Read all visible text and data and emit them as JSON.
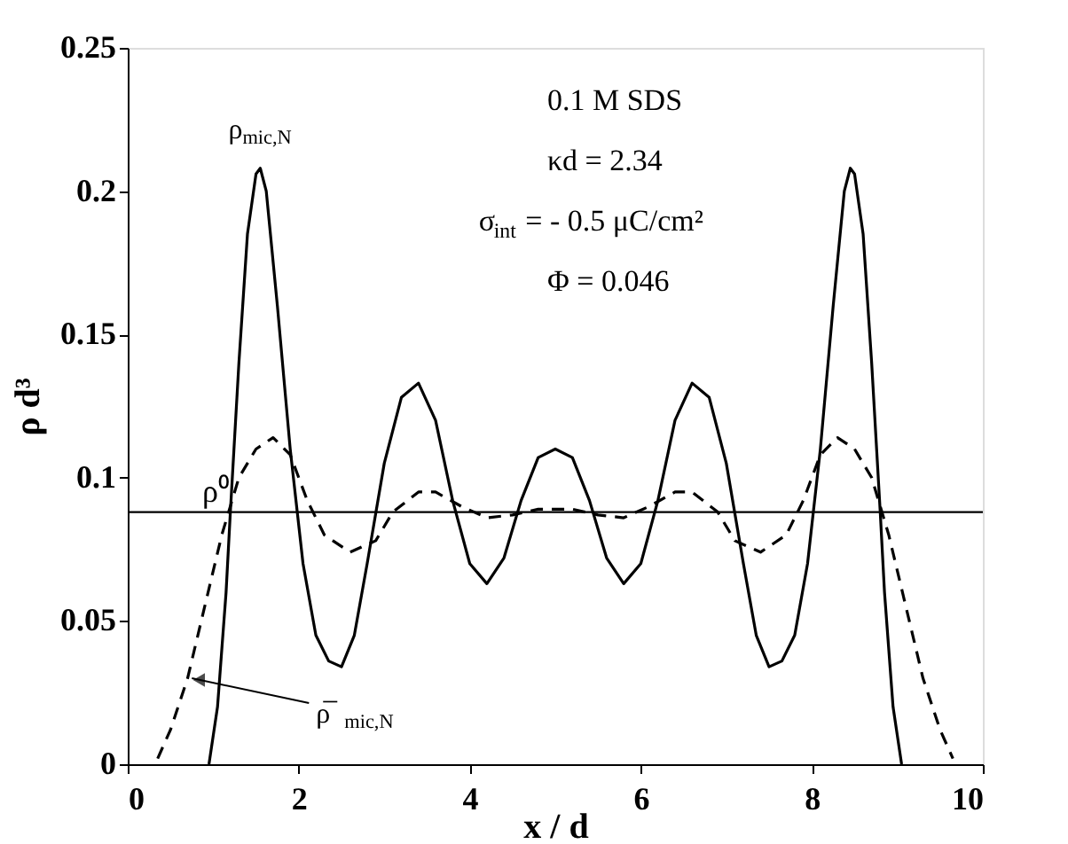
{
  "chart_data": {
    "type": "line",
    "xlabel": "x / d",
    "ylabel": "ρ d³",
    "xlim": [
      0,
      10
    ],
    "ylim": [
      0,
      0.25
    ],
    "xticks": [
      0,
      2,
      4,
      6,
      8,
      10
    ],
    "yticks": [
      0,
      0.05,
      0.1,
      0.15,
      0.2,
      0.25
    ],
    "grid": false,
    "marker": "none",
    "series": [
      {
        "color": "#000000",
        "line_style": "solid",
        "x": [
          0.95,
          1.05,
          1.15,
          1.2,
          1.3,
          1.4,
          1.5,
          1.55,
          1.62,
          1.75,
          1.9,
          2.05,
          2.2,
          2.35,
          2.5,
          2.65,
          2.8,
          3.0,
          3.2,
          3.4,
          3.6,
          3.8,
          4.0,
          4.2,
          4.4,
          4.6,
          4.8,
          5.0,
          5.2,
          5.4,
          5.6,
          5.8,
          6.0,
          6.2,
          6.4,
          6.6,
          6.8,
          7.0,
          7.2,
          7.35,
          7.5,
          7.65,
          7.8,
          7.95,
          8.1,
          8.25,
          8.38,
          8.45,
          8.5,
          8.6,
          8.7,
          8.8,
          8.85,
          8.95,
          9.05
        ],
        "values": [
          0,
          0.02,
          0.06,
          0.088,
          0.14,
          0.185,
          0.206,
          0.208,
          0.2,
          0.16,
          0.11,
          0.07,
          0.045,
          0.036,
          0.034,
          0.045,
          0.07,
          0.105,
          0.128,
          0.133,
          0.12,
          0.092,
          0.07,
          0.063,
          0.072,
          0.092,
          0.107,
          0.11,
          0.107,
          0.092,
          0.072,
          0.063,
          0.07,
          0.092,
          0.12,
          0.133,
          0.128,
          0.105,
          0.07,
          0.045,
          0.034,
          0.036,
          0.045,
          0.07,
          0.11,
          0.16,
          0.2,
          0.208,
          0.206,
          0.185,
          0.14,
          0.088,
          0.06,
          0.02,
          0
        ]
      },
      {
        "color": "#000000",
        "line_style": "dashed",
        "x": [
          0.35,
          0.5,
          0.7,
          0.9,
          1.1,
          1.3,
          1.5,
          1.7,
          1.9,
          2.1,
          2.3,
          2.6,
          2.9,
          3.1,
          3.4,
          3.6,
          3.9,
          4.2,
          4.5,
          4.8,
          5.0,
          5.2,
          5.5,
          5.8,
          6.1,
          6.4,
          6.6,
          6.9,
          7.1,
          7.4,
          7.7,
          7.9,
          8.1,
          8.3,
          8.5,
          8.7,
          8.9,
          9.1,
          9.3,
          9.5,
          9.65
        ],
        "values": [
          0.002,
          0.012,
          0.03,
          0.055,
          0.08,
          0.1,
          0.11,
          0.114,
          0.108,
          0.092,
          0.08,
          0.074,
          0.078,
          0.088,
          0.095,
          0.095,
          0.09,
          0.086,
          0.087,
          0.089,
          0.089,
          0.089,
          0.087,
          0.086,
          0.09,
          0.095,
          0.095,
          0.088,
          0.078,
          0.074,
          0.08,
          0.092,
          0.108,
          0.114,
          0.11,
          0.1,
          0.08,
          0.055,
          0.03,
          0.012,
          0.002
        ]
      }
    ],
    "ref_lines": [
      {
        "axis": "y",
        "value": 0.088,
        "label": "ρ⁰",
        "color": "#000000",
        "line_style": "solid"
      }
    ],
    "annotations": [
      "0.1 M SDS",
      "κd = 2.34",
      "σ$_{int}$ = - 0.5 μC/cm²",
      "Φ = 0.046",
      {
        "text": "ρ$_{mic,N}$",
        "x": 1.55,
        "y": 0.208
      },
      {
        "text": "ρ̅$_{mic,N}$",
        "x": 0.75,
        "y": 0.03
      }
    ]
  }
}
